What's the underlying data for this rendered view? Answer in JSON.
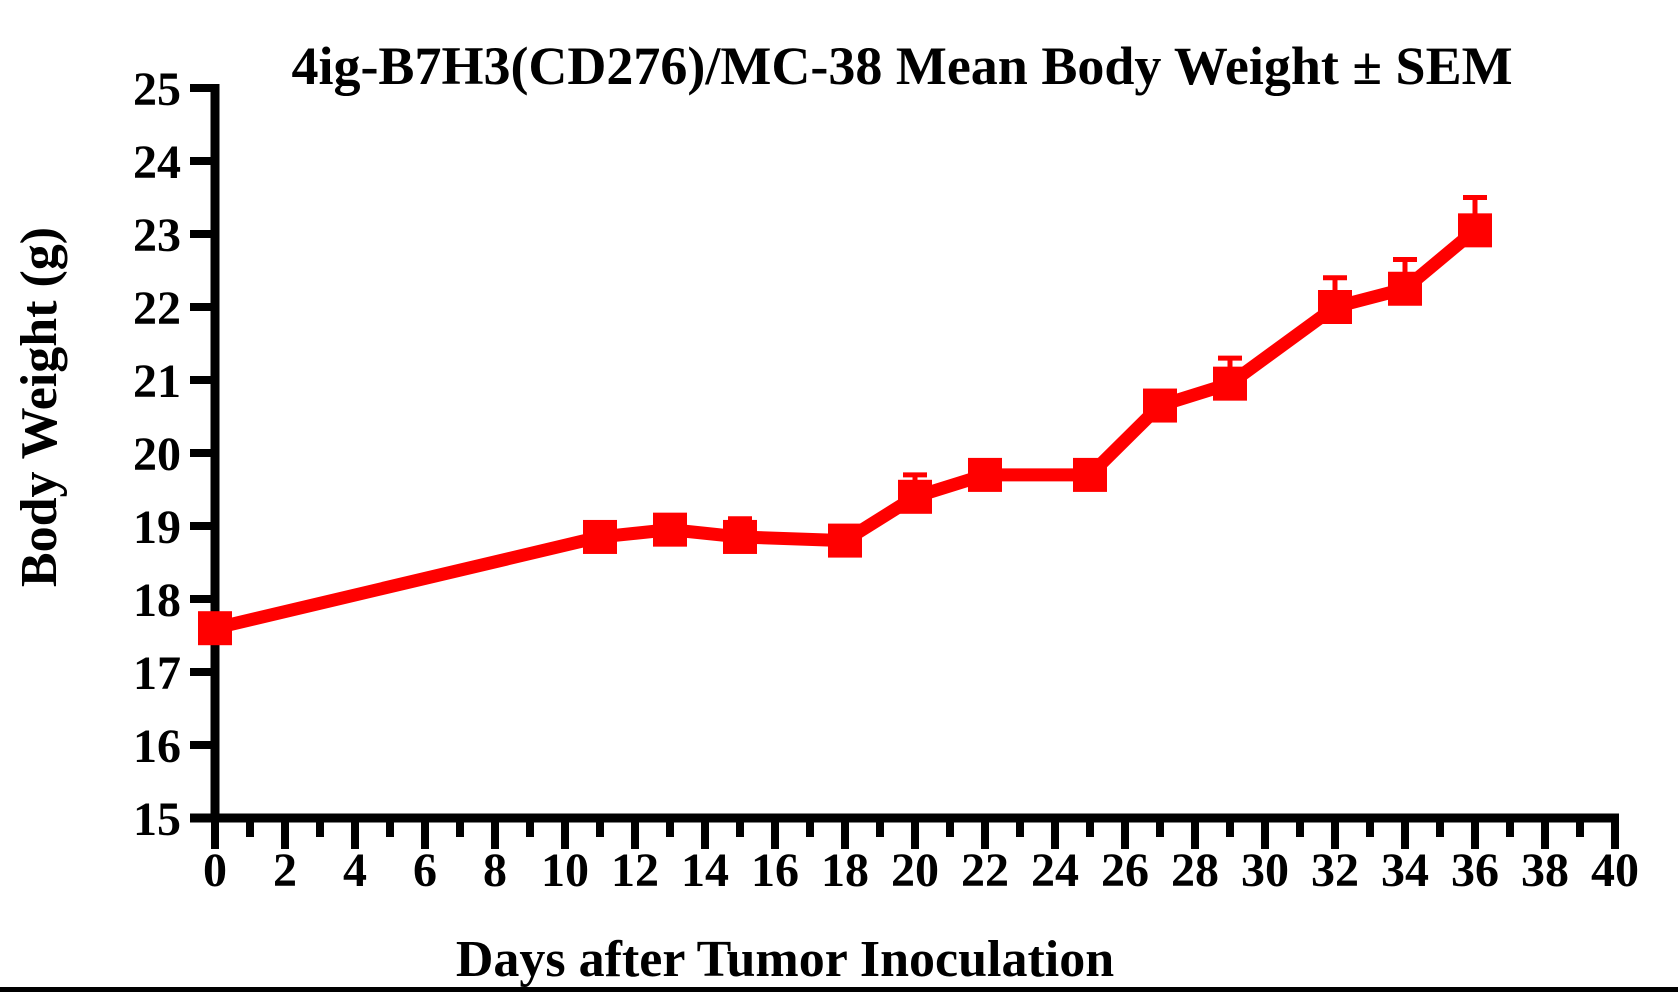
{
  "chart_data": {
    "type": "line",
    "title": "4ig-B7H3(CD276)/MC-38 Mean Body Weight ± SEM",
    "xlabel": "Days after Tumor Inoculation",
    "ylabel": "Body Weight (g)",
    "xlim": [
      0,
      40
    ],
    "ylim": [
      15,
      25
    ],
    "x_tick_labels": [
      0,
      2,
      4,
      6,
      8,
      10,
      12,
      14,
      16,
      18,
      20,
      22,
      24,
      26,
      28,
      30,
      32,
      34,
      36,
      38,
      40
    ],
    "x_minor_tick_step": 1,
    "y_tick_labels": [
      15,
      16,
      17,
      18,
      19,
      20,
      21,
      22,
      23,
      24,
      25
    ],
    "grid": false,
    "legend": "none",
    "series": [
      {
        "name": "4ig-B7H3(CD276)/MC-38",
        "marker": "square",
        "color": "#ff0000",
        "x": [
          0,
          11,
          13,
          15,
          18,
          20,
          22,
          25,
          27,
          29,
          32,
          34,
          36
        ],
        "y": [
          17.6,
          18.85,
          18.95,
          18.85,
          18.8,
          19.4,
          19.7,
          19.7,
          20.65,
          20.95,
          22.0,
          22.25,
          23.05
        ],
        "sem_upper": [
          0,
          0,
          0,
          0.25,
          0,
          0.3,
          0,
          0,
          0,
          0.35,
          0.4,
          0.4,
          0.45
        ]
      }
    ]
  },
  "colors": {
    "series_red": "#ff0000",
    "axis_black": "#000000",
    "background": "#ffffff",
    "bottom_rule": "#000000"
  }
}
